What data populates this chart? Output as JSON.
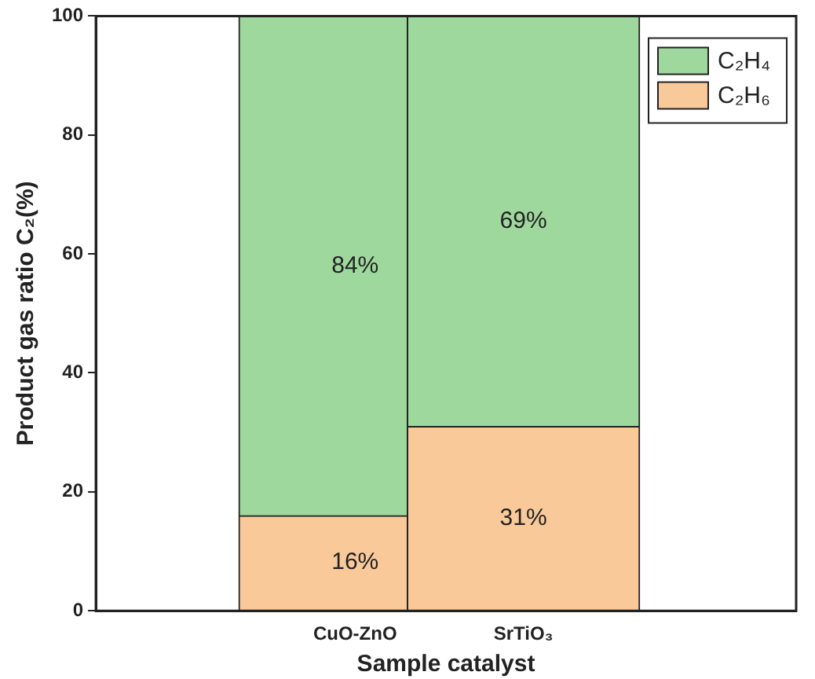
{
  "chart_data": {
    "type": "bar",
    "stacked": true,
    "xlabel": "Sample catalyst",
    "ylabel": "Product gas ratio C₂(%)",
    "categories": [
      "CuO-ZnO",
      "SrTiO₃"
    ],
    "series": [
      {
        "name": "C₂H₆",
        "color": "#f9c99a",
        "values": [
          16,
          31
        ],
        "value_labels": [
          "16%",
          "31%"
        ]
      },
      {
        "name": "C₂H₄",
        "color": "#9fd89d",
        "values": [
          84,
          69
        ],
        "value_labels": [
          "84%",
          "69%"
        ]
      }
    ],
    "ylim": [
      0,
      100
    ],
    "yticks": [
      0,
      20,
      40,
      60,
      80,
      100
    ],
    "grid": false,
    "legend": "top right"
  }
}
